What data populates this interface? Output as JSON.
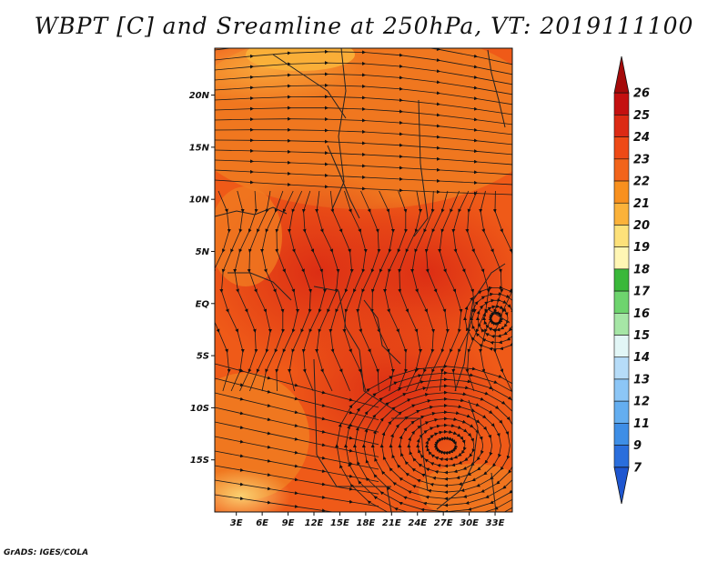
{
  "title": "WBPT [C] and Sreamline at 250hPa, VT: 2019111100",
  "credit": "GrADS: IGES/COLA",
  "chart_data": {
    "type": "heatmap",
    "variable": "WBPT",
    "units": "C",
    "level": "250hPa",
    "valid_time": "2019111100",
    "overlay": "streamlines",
    "lat_ticks": [
      "20N",
      "15N",
      "10N",
      "5N",
      "EQ",
      "5S",
      "10S",
      "15S"
    ],
    "lat_values": [
      20,
      15,
      10,
      5,
      0,
      -5,
      -10,
      -15
    ],
    "lon_ticks": [
      "3E",
      "6E",
      "9E",
      "12E",
      "15E",
      "18E",
      "21E",
      "24E",
      "27E",
      "30E",
      "33E"
    ],
    "lon_values": [
      3,
      6,
      9,
      12,
      15,
      18,
      21,
      24,
      27,
      30,
      33
    ],
    "lon_range": [
      0.5,
      35
    ],
    "lat_range": [
      -20,
      24.5
    ],
    "colorbar": {
      "labels": [
        "26",
        "25",
        "24",
        "23",
        "22",
        "21",
        "20",
        "19",
        "18",
        "17",
        "16",
        "15",
        "14",
        "13",
        "12",
        "11",
        "9",
        "7"
      ],
      "colors": [
        "#a50a0a",
        "#c41010",
        "#dc2a14",
        "#ee4a16",
        "#f2641a",
        "#f8901e",
        "#fbb23a",
        "#fde17a",
        "#fff6b4",
        "#3ab83a",
        "#6ed46e",
        "#a6e6a6",
        "#e2f6f6",
        "#b6dcf8",
        "#8cc6f6",
        "#64aef0",
        "#3e8ee6",
        "#2a6edc",
        "#1e56d0"
      ]
    }
  }
}
